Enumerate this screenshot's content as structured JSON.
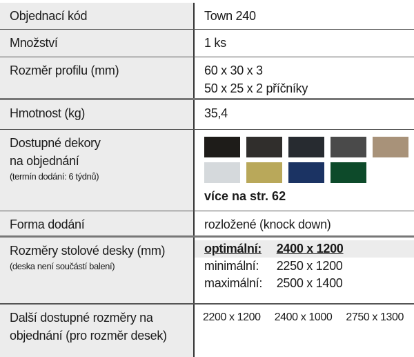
{
  "rows": {
    "code": {
      "label": "Objednací kód",
      "value": "Town 240"
    },
    "qty": {
      "label": "Množství",
      "value": "1 ks"
    },
    "profile": {
      "label": "Rozměr profilu (mm)",
      "value1": "60 x 30 x 3",
      "value2": "50 x 25 x 2 příčníky"
    },
    "weight": {
      "label": "Hmotnost (kg)",
      "value": "35,4"
    },
    "decors": {
      "label1": "Dostupné dekory",
      "label2": "na objednání",
      "note": "(termín dodání: 6 týdnů)",
      "more": "více na str. 62",
      "swatches": [
        "#1e1c19",
        "#302e2c",
        "#272b30",
        "#4a4a4a",
        "#a89279",
        "#d5d9dc",
        "#b9a85a",
        "#1b3363",
        "#0d4a2a"
      ]
    },
    "delivery": {
      "label": "Forma dodání",
      "value": "rozložené (knock down)"
    },
    "top": {
      "label": "Rozměry stolové desky (mm)",
      "note": "(deska není součástí balení)",
      "optimal_label": "optimální:",
      "optimal_value": "2400 x 1200",
      "min_label": "minimální:",
      "min_value": "2250 x 1200",
      "max_label": "maximální:",
      "max_value": "2500 x 1400"
    },
    "other": {
      "label1": "Další dostupné rozměry na",
      "label2": "objednání (pro rozměr desek)",
      "sizes": [
        "2200 x 1200",
        "2400 x 1000",
        "2750 x 1300"
      ]
    }
  }
}
